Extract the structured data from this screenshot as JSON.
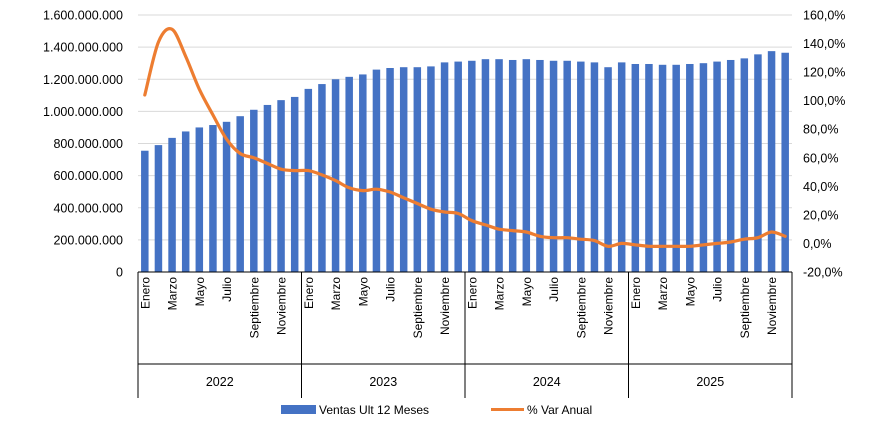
{
  "chart_data": {
    "type": "bar+line",
    "title": "",
    "xlabel": "",
    "ylabel": "",
    "y_left": {
      "ticks": [
        "0",
        "200.000.000",
        "400.000.000",
        "600.000.000",
        "800.000.000",
        "1.000.000.000",
        "1.200.000.000",
        "1.400.000.000",
        "1.600.000.000"
      ],
      "ylim": [
        0,
        1600000000
      ]
    },
    "y_right": {
      "ticks": [
        "-20,0%",
        "0,0%",
        "20,0%",
        "40,0%",
        "60,0%",
        "80,0%",
        "100,0%",
        "120,0%",
        "140,0%",
        "160,0%"
      ],
      "ylim": [
        -20,
        160
      ]
    },
    "grid": "horizontal",
    "legend_position": "bottom",
    "month_labels": [
      "Enero",
      "Marzo",
      "Mayo",
      "Julio",
      "Septiembre",
      "Noviembre"
    ],
    "years": [
      {
        "label": "2022",
        "months": 12
      },
      {
        "label": "2023",
        "months": 12
      },
      {
        "label": "2024",
        "months": 12
      },
      {
        "label": "2025",
        "months": 12
      }
    ],
    "series": [
      {
        "name": "Ventas Ult 12 Meses",
        "type": "bar",
        "axis": "left",
        "color": "#4472C4",
        "values": [
          755000000,
          790000000,
          835000000,
          875000000,
          900000000,
          915000000,
          935000000,
          970000000,
          1010000000,
          1040000000,
          1070000000,
          1090000000,
          1140000000,
          1170000000,
          1200000000,
          1215000000,
          1230000000,
          1260000000,
          1270000000,
          1275000000,
          1275000000,
          1280000000,
          1305000000,
          1310000000,
          1315000000,
          1325000000,
          1325000000,
          1320000000,
          1325000000,
          1320000000,
          1315000000,
          1315000000,
          1310000000,
          1305000000,
          1275000000,
          1305000000,
          1295000000,
          1295000000,
          1290000000,
          1290000000,
          1295000000,
          1300000000,
          1310000000,
          1320000000,
          1330000000,
          1355000000,
          1375000000,
          1365000000
        ]
      },
      {
        "name": "% Var Anual",
        "type": "line",
        "axis": "right",
        "color": "#ED7D31",
        "values": [
          104,
          141,
          150,
          131,
          108,
          90,
          73,
          63,
          60,
          56,
          52,
          51,
          51,
          48,
          44,
          39,
          37,
          38,
          36,
          32,
          28,
          24,
          22,
          21,
          16,
          13,
          10,
          9,
          8,
          5,
          4,
          4,
          3,
          2,
          -2,
          0,
          -1,
          -2,
          -2,
          -2,
          -2,
          -1,
          0,
          1,
          3,
          4,
          8,
          5
        ]
      }
    ]
  }
}
